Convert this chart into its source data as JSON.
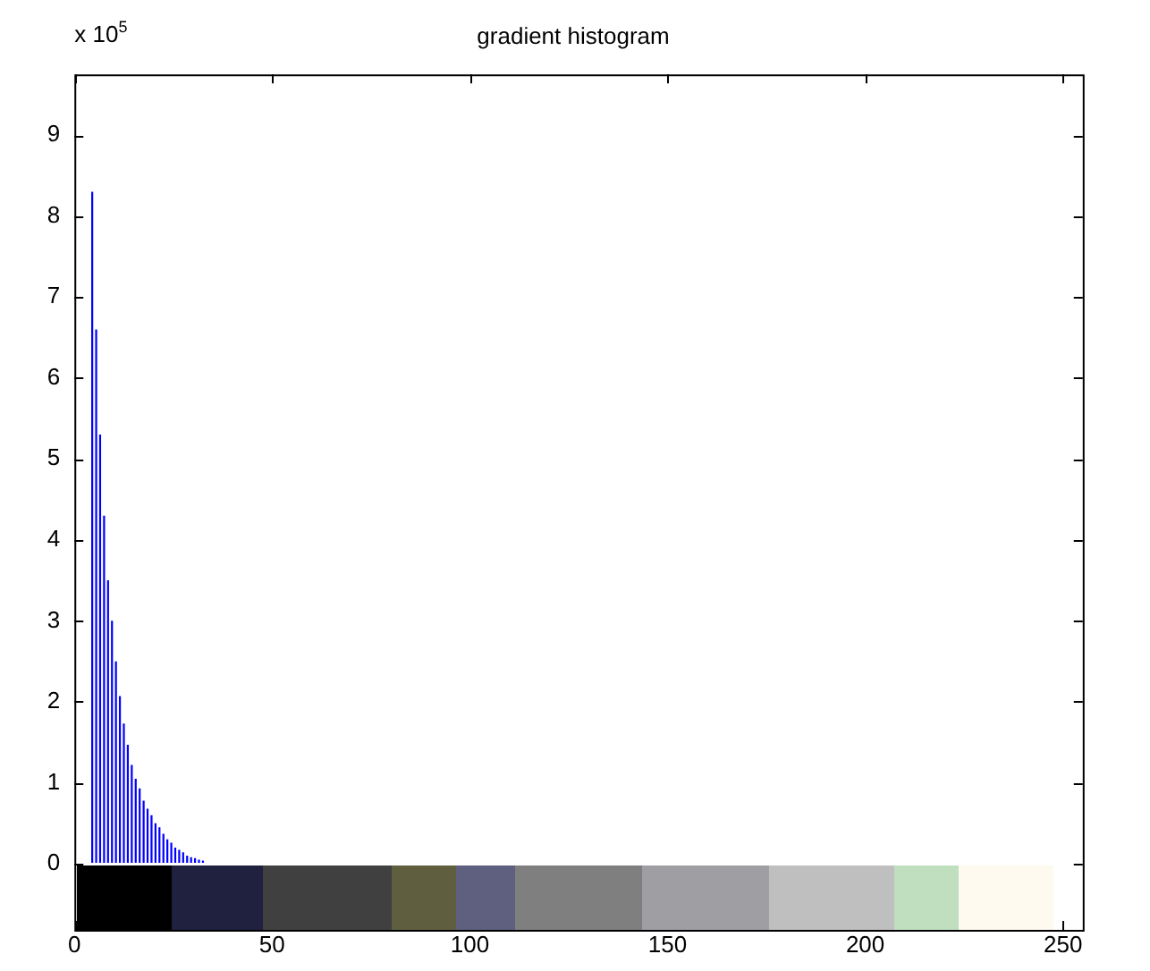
{
  "chart_data": {
    "type": "histogram",
    "title": "gradient histogram",
    "annotations": [
      "x 10$^{5}$"
    ],
    "bins": [
      0,
      1,
      2,
      3,
      4,
      5,
      6,
      7,
      8,
      9,
      10,
      11,
      12,
      13,
      14,
      15,
      16,
      17,
      18,
      19,
      20,
      21,
      22,
      23,
      24,
      25,
      26,
      27,
      28,
      29,
      30,
      31,
      32,
      33,
      34,
      35,
      36,
      37
    ],
    "values": [
      null,
      null,
      null,
      null,
      8.3,
      6.6,
      5.3,
      4.3,
      3.5,
      3.0,
      2.5,
      2.07,
      1.73,
      1.47,
      1.22,
      1.05,
      0.93,
      0.78,
      0.68,
      0.6,
      0.5,
      0.45,
      0.37,
      0.3,
      0.26,
      0.2,
      0.17,
      0.14,
      0.1,
      0.08,
      0.07,
      0.05,
      0.04,
      null,
      null,
      null,
      null
    ],
    "color": "#0000ff",
    "xlim": [
      0,
      255
    ],
    "xticks": [
      0,
      50,
      100,
      150,
      200,
      250
    ],
    "ylim": [
      0,
      9.75
    ],
    "yticks": [
      0,
      1,
      2,
      3,
      4,
      5,
      6,
      7,
      8,
      9
    ],
    "grid": false,
    "legend": false
  }
}
